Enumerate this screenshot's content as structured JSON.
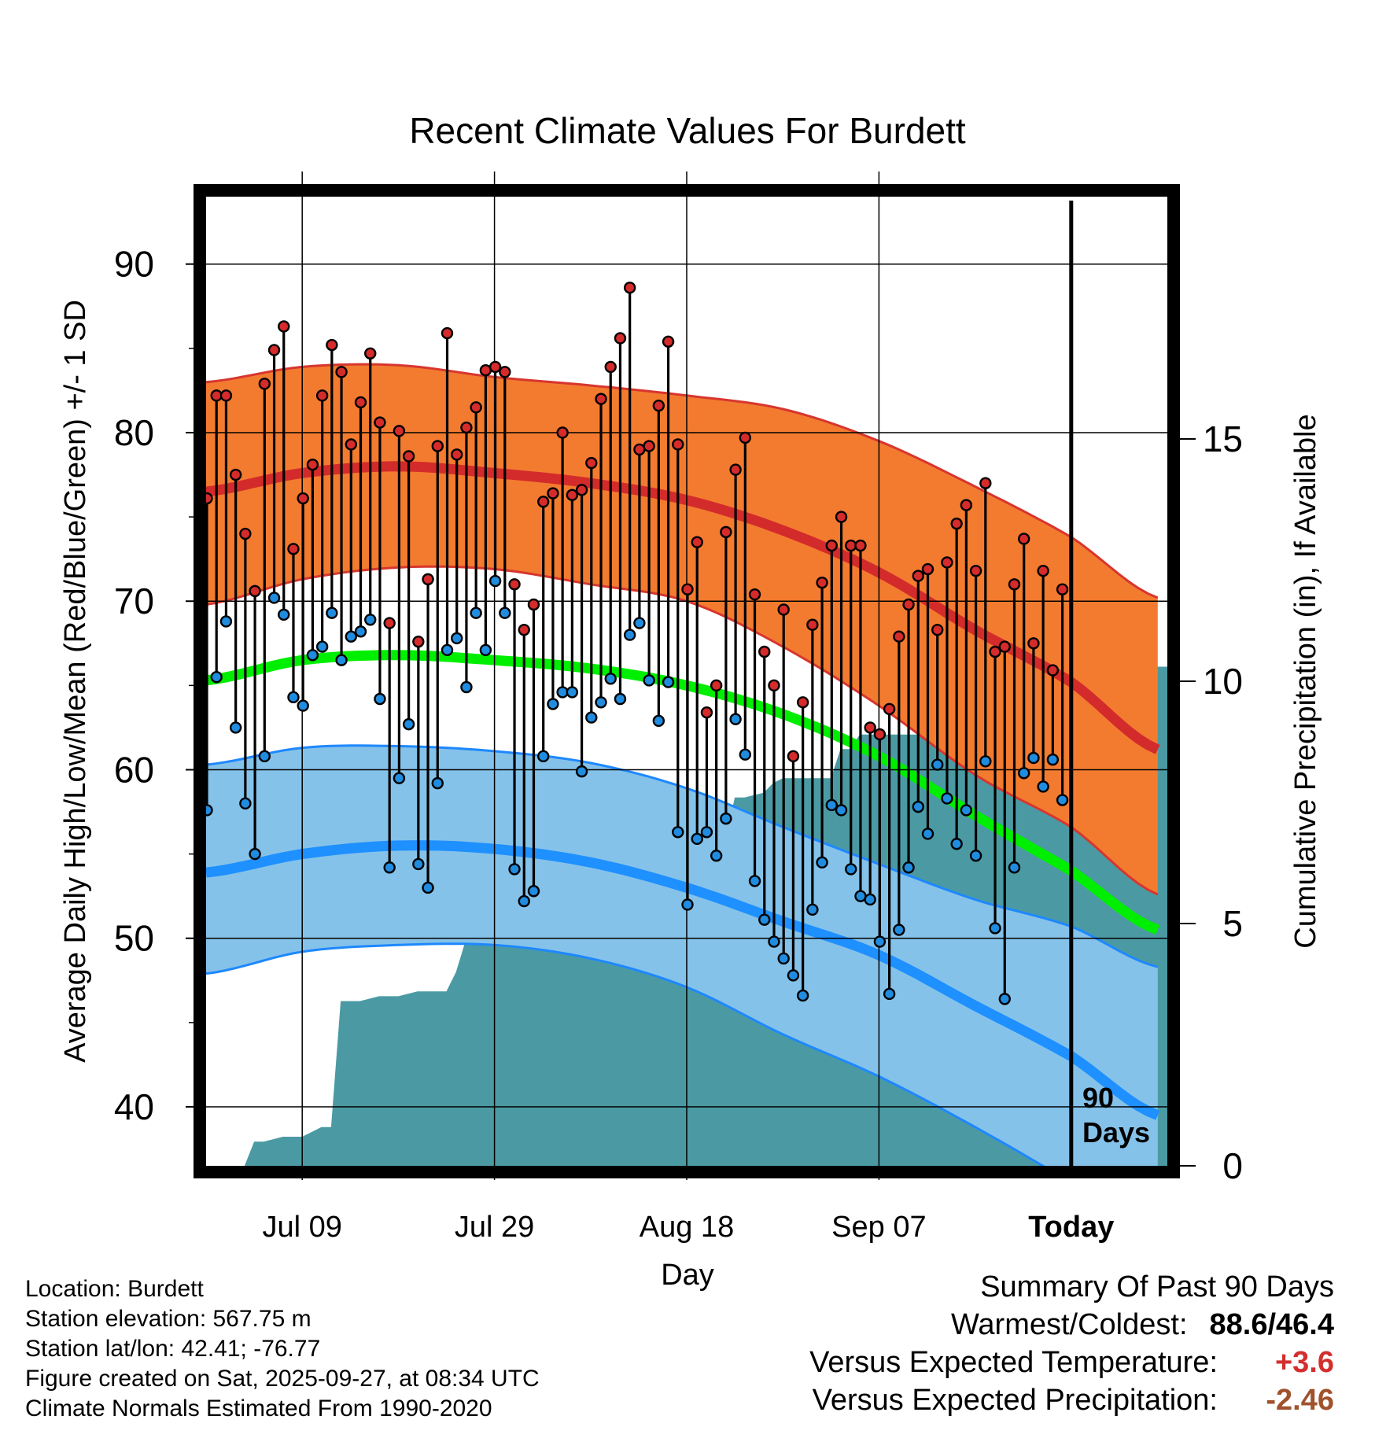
{
  "chart_data": {
    "type": "line",
    "title": "Recent Climate Values For Burdett",
    "xlabel": "Day",
    "ylabel": "Average Daily High/Low/Mean (Red/Blue/Green) +/- 1 SD",
    "y2label": "Cumulative Precipitation (in), If Available",
    "ylim": [
      36.5,
      94
    ],
    "y2lim": [
      0,
      20
    ],
    "xlim": [
      -90,
      10
    ],
    "x_ticks": [
      {
        "day": -80,
        "label": "Jul 09"
      },
      {
        "day": -60,
        "label": "Jul 29"
      },
      {
        "day": -40,
        "label": "Aug 18"
      },
      {
        "day": -20,
        "label": "Sep 07"
      },
      {
        "day": 0,
        "label": "Today"
      }
    ],
    "y_ticks": [
      40,
      50,
      60,
      70,
      80,
      90
    ],
    "y2_ticks": [
      0,
      5,
      10,
      15
    ],
    "today_marker": {
      "day": 0,
      "label_line1": "90",
      "label_line2": "Days"
    },
    "normals": {
      "day": [
        -90,
        -80,
        -70,
        -60,
        -50,
        -40,
        -30,
        -20,
        -10,
        0,
        9
      ],
      "high_mean": [
        76.5,
        77.6,
        78.0,
        77.6,
        77.0,
        76.0,
        74.2,
        71.7,
        68.3,
        65.2,
        61.2
      ],
      "high_upper": [
        83.0,
        83.9,
        84.0,
        83.3,
        82.8,
        82.2,
        81.4,
        79.5,
        76.8,
        73.8,
        70.2
      ],
      "high_lower": [
        69.8,
        71.3,
        72.0,
        71.9,
        71.0,
        70.0,
        67.3,
        63.8,
        59.7,
        56.6,
        52.6
      ],
      "mean": [
        65.3,
        66.5,
        66.8,
        66.5,
        66.0,
        65.0,
        63.3,
        60.8,
        57.3,
        54.0,
        50.5
      ],
      "low_mean": [
        53.9,
        55.0,
        55.5,
        55.3,
        54.5,
        53.0,
        51.0,
        49.0,
        46.0,
        43.0,
        39.5
      ],
      "low_upper": [
        60.3,
        61.3,
        61.4,
        61.1,
        60.4,
        58.9,
        56.6,
        54.4,
        52.3,
        50.7,
        48.3
      ],
      "low_lower": [
        47.9,
        49.2,
        49.6,
        49.6,
        48.8,
        47.1,
        44.3,
        41.8,
        38.8,
        35.5,
        32.0
      ]
    },
    "observed": {
      "start_day": -90,
      "high": [
        76.1,
        82.2,
        82.2,
        77.5,
        74.0,
        70.6,
        82.9,
        84.9,
        86.3,
        73.1,
        76.1,
        78.1,
        82.2,
        85.2,
        83.6,
        79.3,
        81.8,
        84.7,
        80.6,
        68.7,
        80.1,
        78.6,
        67.6,
        71.3,
        79.2,
        85.9,
        78.7,
        80.3,
        81.5,
        83.7,
        83.9,
        83.6,
        71.0,
        68.3,
        69.8,
        75.9,
        76.4,
        80.0,
        76.3,
        76.6,
        78.2,
        82.0,
        83.9,
        85.6,
        88.6,
        79.0,
        79.2,
        81.6,
        85.4,
        79.3,
        70.7,
        73.5,
        63.4,
        65.0,
        74.1,
        77.8,
        79.7,
        70.4,
        67.0,
        65.0,
        69.5,
        60.8,
        64.0,
        68.6,
        71.1,
        73.3,
        75.0,
        73.3,
        73.3,
        62.5,
        62.1,
        63.6,
        67.9,
        69.8,
        71.5,
        71.9,
        68.3,
        72.3,
        74.6,
        75.7,
        71.8,
        77.0,
        67.0,
        67.3,
        71.0,
        73.7,
        67.5,
        71.8,
        65.9,
        70.7
      ],
      "low": [
        57.6,
        65.5,
        68.8,
        62.5,
        58.0,
        55.0,
        60.8,
        70.2,
        69.2,
        64.3,
        63.8,
        66.8,
        67.3,
        69.3,
        66.5,
        67.9,
        68.2,
        68.9,
        64.2,
        54.2,
        59.5,
        62.7,
        54.4,
        53.0,
        59.2,
        67.1,
        67.8,
        64.9,
        69.3,
        67.1,
        71.2,
        69.3,
        54.1,
        52.2,
        52.8,
        60.8,
        63.9,
        64.6,
        64.6,
        59.9,
        63.1,
        64.0,
        65.4,
        64.2,
        68.0,
        68.7,
        65.3,
        62.9,
        65.2,
        56.3,
        52.0,
        55.9,
        56.3,
        54.9,
        57.1,
        63.0,
        60.9,
        53.4,
        51.1,
        49.8,
        48.8,
        47.8,
        46.6,
        51.7,
        54.5,
        57.9,
        57.6,
        54.1,
        52.5,
        52.3,
        49.8,
        46.7,
        50.5,
        54.2,
        57.8,
        56.2,
        60.3,
        58.3,
        55.6,
        57.6,
        54.9,
        60.5,
        50.6,
        46.4,
        54.2,
        59.8,
        60.7,
        59.0,
        60.6,
        58.2
      ]
    },
    "precip": {
      "day": [
        -90,
        -86,
        -85,
        -84,
        -82,
        -80,
        -78,
        -77,
        -76,
        -75,
        -74,
        -72,
        -70,
        -68,
        -66,
        -65,
        -64,
        -62,
        -61,
        -60,
        -58,
        -57,
        -56,
        -54,
        -50,
        -48,
        -46,
        -42,
        -40,
        -39,
        -38,
        -36,
        -35,
        -34,
        -32,
        -31,
        -30,
        -28,
        -27,
        -25,
        -24,
        -23,
        -22,
        -20,
        -18,
        -16,
        -14,
        -12,
        -10,
        -8,
        -6,
        -5,
        -4,
        -3,
        -2,
        0,
        10
      ],
      "value": [
        0,
        0,
        0.5,
        0.5,
        0.6,
        0.6,
        0.8,
        0.8,
        3.4,
        3.4,
        3.4,
        3.5,
        3.5,
        3.6,
        3.6,
        3.6,
        4.0,
        5.3,
        5.3,
        5.3,
        5.3,
        5.9,
        6.0,
        6.0,
        6.0,
        6.0,
        6.1,
        6.1,
        6.1,
        6.7,
        6.7,
        6.7,
        7.6,
        7.6,
        7.7,
        7.9,
        8.0,
        8.0,
        8.0,
        8.0,
        8.6,
        8.6,
        8.9,
        8.9,
        8.9,
        8.9,
        8.9,
        8.9,
        8.9,
        8.9,
        8.9,
        9.2,
        10.3,
        10.3,
        10.3,
        10.3,
        10.3
      ]
    },
    "colors": {
      "high_band": "#f37b2f",
      "high_line": "#d32b2b",
      "high_edge": "#d7362f",
      "low_band": "#85c2e9",
      "low_line": "#1e90ff",
      "low_edge": "#1e88ff",
      "mean_line": "#00ee00",
      "precip_fill": "#4b9aa3",
      "high_dot": "#d52b2b",
      "low_dot": "#1f8ce0"
    }
  },
  "info": {
    "location": "Location: Burdett",
    "elevation": "Station elevation: 567.75 m",
    "latlon": "Station lat/lon: 42.41; -76.77",
    "created": "Figure created on Sat, 2025-09-27, at 08:34 UTC",
    "normals": "Climate Normals Estimated From 1990-2020"
  },
  "summary": {
    "title": "Summary Of Past 90 Days",
    "warm_cold_label": "Warmest/Coldest:",
    "warm_cold_value": "88.6/46.4",
    "temp_label": "Versus Expected Temperature:",
    "temp_value": "+3.6",
    "precip_label": "Versus Expected Precipitation:",
    "precip_value": "-2.46"
  }
}
